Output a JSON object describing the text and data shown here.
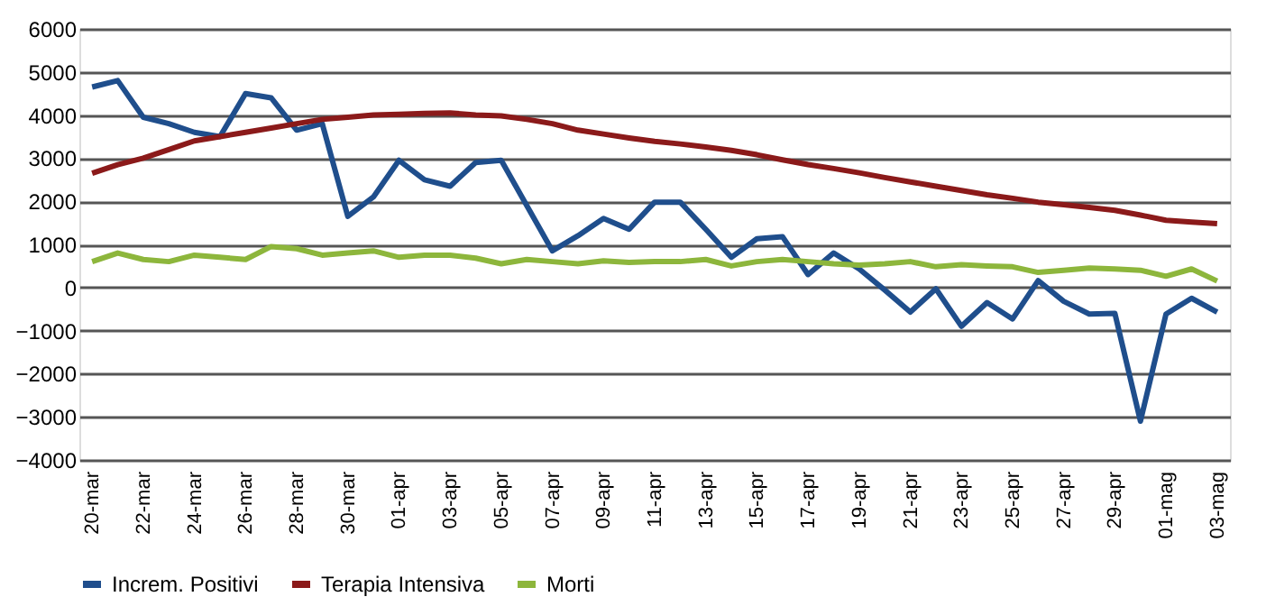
{
  "chart_data": {
    "type": "line",
    "categories": [
      "20-mar",
      null,
      "22-mar",
      null,
      "24-mar",
      null,
      "26-mar",
      null,
      "28-mar",
      null,
      "30-mar",
      null,
      "01-apr",
      null,
      "03-apr",
      null,
      "05-apr",
      null,
      "07-apr",
      null,
      "09-apr",
      null,
      "11-apr",
      null,
      "13-apr",
      null,
      "15-apr",
      null,
      "17-apr",
      null,
      "19-apr",
      null,
      "21-apr",
      null,
      "23-apr",
      null,
      "25-apr",
      null,
      "27-apr",
      null,
      "29-apr",
      null,
      "01-mag",
      null,
      "03-mag"
    ],
    "series": [
      {
        "name": "Increm. Positivi",
        "color": "#1f4e8c",
        "values": [
          4650,
          4800,
          3950,
          3800,
          3600,
          3500,
          4500,
          4400,
          3650,
          3800,
          1650,
          2100,
          2950,
          2500,
          2350,
          2900,
          2950,
          1900,
          850,
          1200,
          1600,
          1350,
          1980,
          1980,
          1350,
          700,
          1130,
          1180,
          300,
          800,
          430,
          -60,
          -570,
          -30,
          -900,
          -350,
          -730,
          160,
          -320,
          -615,
          -600,
          -3100,
          -615,
          -250,
          -570
        ]
      },
      {
        "name": "Terapia Intensiva",
        "color": "#8b1a1a",
        "values": [
          2650,
          2850,
          3000,
          3200,
          3400,
          3500,
          3600,
          3700,
          3800,
          3900,
          3950,
          4000,
          4020,
          4040,
          4050,
          4000,
          3980,
          3900,
          3800,
          3650,
          3560,
          3470,
          3390,
          3330,
          3260,
          3180,
          3080,
          2960,
          2850,
          2760,
          2660,
          2550,
          2450,
          2350,
          2250,
          2150,
          2070,
          1980,
          1920,
          1860,
          1790,
          1680,
          1560,
          1520,
          1480
        ]
      },
      {
        "name": "Morti",
        "color": "#8db63c",
        "values": [
          600,
          800,
          650,
          600,
          750,
          700,
          650,
          950,
          900,
          750,
          800,
          850,
          700,
          750,
          750,
          680,
          550,
          650,
          600,
          550,
          620,
          580,
          600,
          600,
          650,
          500,
          600,
          650,
          600,
          550,
          520,
          550,
          600,
          480,
          530,
          500,
          480,
          350,
          400,
          450,
          430,
          400,
          260,
          430,
          150
        ]
      }
    ],
    "ylim": [
      -4000,
      6000
    ],
    "yticks": [
      -4000,
      -3000,
      -2000,
      -1000,
      0,
      1000,
      2000,
      3000,
      4000,
      5000,
      6000
    ],
    "grid": "y",
    "legend": "bottom",
    "marker": "none",
    "line_style": "solid"
  }
}
